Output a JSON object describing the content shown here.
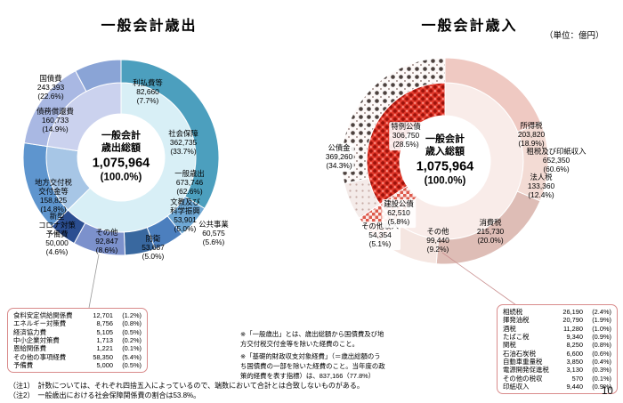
{
  "page": {
    "unit_label": "（単位：億円）",
    "page_number": "10",
    "colors": {
      "list_border": "#d98b8b",
      "expenditure_accent": "#4c9fbe",
      "revenue_accent": "#e23b2e"
    },
    "notes_mid": [
      "※「一般歳出」とは、歳出総額から国債費及び地方交付税交付金等を除いた経費のこと。",
      "※「基礎的財政収支対象経費」（＝歳出総額のうち国債費の一部を除いた経費のこと。当年度の政策的経費を表す指標）は、837,166（77.8%）"
    ],
    "notes_bottom": [
      "（注1）　計数については、それぞれ四捨五入によっているので、端数において合計とは合致しないものがある。",
      "（注2）　一般歳出における社会保障関係費の割合は53.8%。"
    ]
  },
  "chart_data": [
    {
      "type": "pie",
      "title": "一般会計歳出",
      "total": 1075964,
      "total_display": "1,075,964",
      "center": {
        "l1": "一般会計",
        "l2": "歳出総額",
        "value": "1,075,964",
        "pct": "(100.0%)"
      },
      "outer_ring": [
        {
          "label": "社会保障",
          "value": 362735,
          "pct": 33.7,
          "color": "#4c9fbe"
        },
        {
          "label": "公共事業",
          "value": 60575,
          "pct": 5.6,
          "color": "#6fa8d4"
        },
        {
          "label": "文教及び科学振興",
          "value": 53901,
          "pct": 5.0,
          "color": "#4c7fbe"
        },
        {
          "label": "防衛",
          "value": 53687,
          "pct": 5.0,
          "color": "#39689f"
        },
        {
          "label": "その他",
          "value": 92847,
          "pct": 8.6,
          "color": "#7c91cc"
        },
        {
          "label": "新型コロナ対策予備費",
          "value": 50000,
          "pct": 4.6,
          "color": "#2b4e91"
        },
        {
          "label": "地方交付税交付金等",
          "value": 158825,
          "pct": 14.8,
          "color": "#5e95ce"
        },
        {
          "label": "債務償還費",
          "value": 160733,
          "pct": 14.9,
          "color": "#a9b8e3"
        },
        {
          "label": "利払費等",
          "value": 82660,
          "pct": 7.7,
          "color": "#8aa4d6"
        }
      ],
      "inner_ring": [
        {
          "label": "一般歳出",
          "value": 673746,
          "pct": 62.6,
          "color": "#d8eff6"
        },
        {
          "label": "地方交付税交付金等",
          "value": 158825,
          "pct": 14.8,
          "color": "#a7c6e6"
        },
        {
          "label": "国債費",
          "value": 243393,
          "pct": 22.6,
          "color": "#cbd2ee"
        }
      ],
      "labels": [
        {
          "text": "国債費\n243,393\n(22.6%)"
        },
        {
          "text": "利払費等\n82,660\n(7.7%)"
        },
        {
          "text": "債務償還費\n160,733\n(14.9%)"
        },
        {
          "text": "社会保障\n362,735\n(33.7%)"
        },
        {
          "text": "一般歳出\n673,746\n(62.6%)"
        },
        {
          "text": "公共事業\n60,575\n(5.6%)"
        },
        {
          "text": "文教及び\n科学振興\n53,901\n(5.0%)"
        },
        {
          "text": "防衛\n53,687\n(5.0%)"
        },
        {
          "text": "その他\n92,847\n(8.6%)"
        },
        {
          "text": "新型\nコロナ対策\n予備費\n50,000\n(4.6%)"
        },
        {
          "text": "地方交付税\n交付金等\n158,825\n(14.8%)"
        }
      ],
      "breakout_list": {
        "rows": [
          {
            "name": "食料安定供給関係費",
            "value": "12,701",
            "pct": "(1.2%)"
          },
          {
            "name": "エネルギー対策費",
            "value": "8,756",
            "pct": "(0.8%)"
          },
          {
            "name": "経済協力費",
            "value": "5,105",
            "pct": "(0.5%)"
          },
          {
            "name": "中小企業対策費",
            "value": "1,713",
            "pct": "(0.2%)"
          },
          {
            "name": "恩給関係費",
            "value": "1,221",
            "pct": "(0.1%)"
          },
          {
            "name": "その他の事項経費",
            "value": "58,350",
            "pct": "(5.4%)"
          },
          {
            "name": "予備費",
            "value": "5,000",
            "pct": "(0.5%)"
          }
        ]
      }
    },
    {
      "type": "pie",
      "title": "一般会計歳入",
      "total": 1075964,
      "total_display": "1,075,964",
      "center": {
        "l1": "一般会計",
        "l2": "歳入総額",
        "value": "1,075,964",
        "pct": "(100.0%)"
      },
      "outer_ring": [
        {
          "label": "所得税",
          "value": 203820,
          "pct": 18.9,
          "color": "#efc9c2"
        },
        {
          "label": "法人税",
          "value": 133360,
          "pct": 12.4,
          "color": "#f3dbd4"
        },
        {
          "label": "消費税",
          "value": 215730,
          "pct": 20.0,
          "color": "#debdb6"
        },
        {
          "label": "その他",
          "value": 99440,
          "pct": 9.2,
          "color": "#f5e6e1"
        },
        {
          "label": "その他収入",
          "value": 54354,
          "pct": 5.1,
          "pattern": "check-red"
        },
        {
          "label": "建設公債",
          "value": 62510,
          "pct": 5.8,
          "pattern": "dots-light"
        },
        {
          "label": "特例公債",
          "value": 306750,
          "pct": 28.5,
          "pattern": "dots-dark"
        }
      ],
      "inner_ring": [
        {
          "label": "租税及び印紙収入",
          "value": 652350,
          "pct": 60.6,
          "color": "#f9ece9"
        },
        {
          "label": "その他収入",
          "value": 54354,
          "pct": 5.1,
          "pattern": "check-red"
        },
        {
          "label": "公債金",
          "value": 369260,
          "pct": 34.3,
          "pattern": "halftone-red"
        }
      ],
      "labels": [
        {
          "text": "所得税\n203,820\n(18.9%)"
        },
        {
          "text": "租税及び印紙収入\n652,350\n(60.6%)"
        },
        {
          "text": "法人税\n133,360\n(12.4%)"
        },
        {
          "text": "消費税\n215,730\n(20.0%)"
        },
        {
          "text": "その他\n99,440\n(9.2%)"
        },
        {
          "text": "その他収入\n54,354\n(5.1%)"
        },
        {
          "text": "建設公債\n62,510\n(5.8%)"
        },
        {
          "text": "特例公債\n306,750\n(28.5%)"
        },
        {
          "text": "公債金\n369,260\n(34.3%)"
        }
      ],
      "breakout_list": {
        "rows": [
          {
            "name": "相続税",
            "value": "26,190",
            "pct": "(2.4%)"
          },
          {
            "name": "揮発油税",
            "value": "20,790",
            "pct": "(1.9%)"
          },
          {
            "name": "酒税",
            "value": "11,280",
            "pct": "(1.0%)"
          },
          {
            "name": "たばこ税",
            "value": "9,340",
            "pct": "(0.9%)"
          },
          {
            "name": "関税",
            "value": "8,250",
            "pct": "(0.8%)"
          },
          {
            "name": "石油石炭税",
            "value": "6,600",
            "pct": "(0.6%)"
          },
          {
            "name": "自動車重量税",
            "value": "3,850",
            "pct": "(0.4%)"
          },
          {
            "name": "電源開発促進税",
            "value": "3,130",
            "pct": "(0.3%)"
          },
          {
            "name": "その他の税収",
            "value": "570",
            "pct": "(0.1%)"
          },
          {
            "name": "印紙収入",
            "value": "9,440",
            "pct": "(0.9%)"
          }
        ]
      }
    }
  ]
}
